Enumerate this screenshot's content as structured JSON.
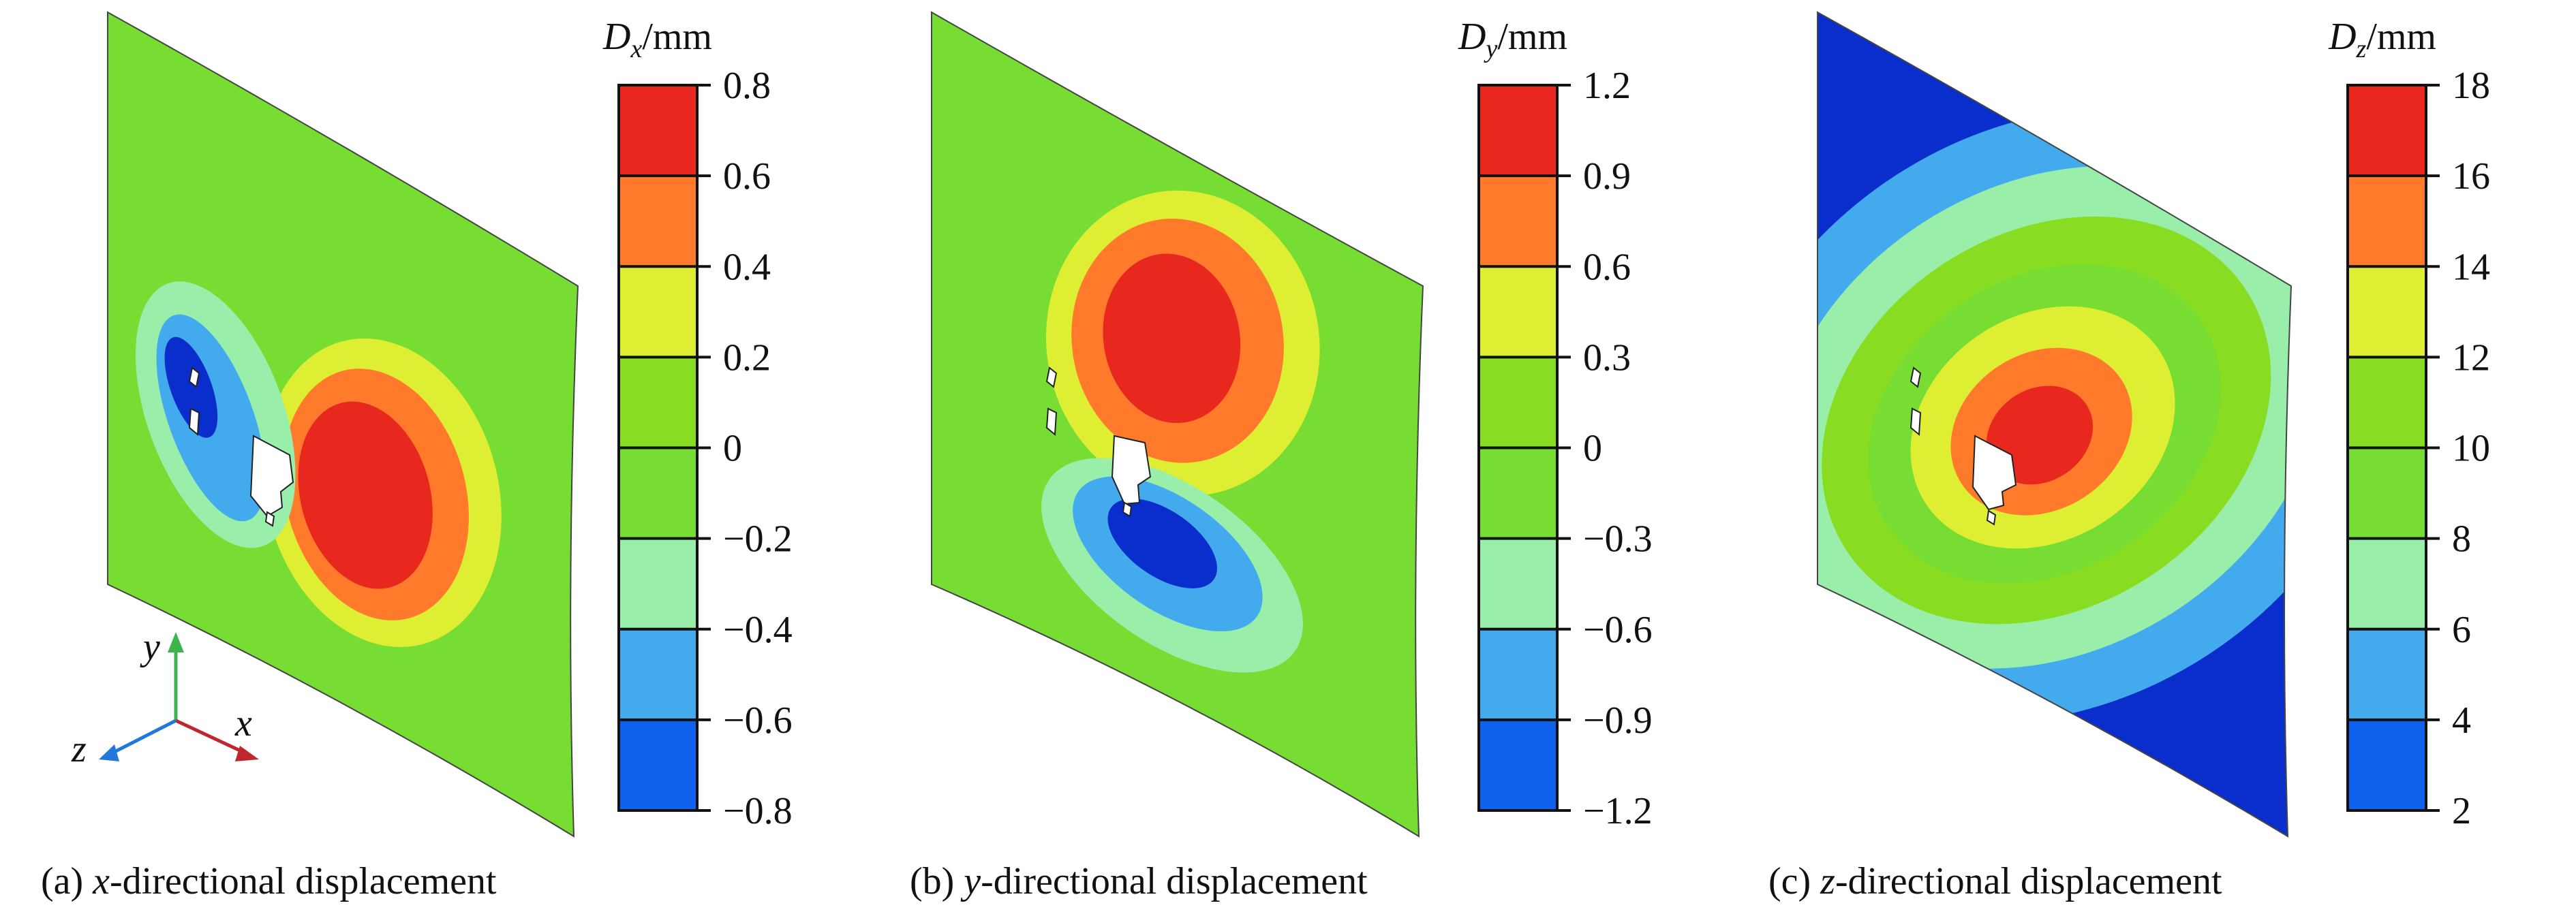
{
  "panels": [
    {
      "id": "a",
      "caption_prefix": "(a) ",
      "caption_var": "x",
      "caption_suffix": "-directional displacement",
      "legend_symbol": "D",
      "legend_subscript": "x",
      "legend_unit": "/mm",
      "legend_ticks": [
        "0.8",
        "0.6",
        "0.4",
        "0.2",
        "0",
        "−0.2",
        "−0.4",
        "−0.6",
        "−0.8"
      ],
      "legend_colors": [
        "#e8281e",
        "#ff7b2b",
        "#ddee33",
        "#88dd22",
        "#77dd33",
        "#99eeaa",
        "#44aaee",
        "#1060ee"
      ]
    },
    {
      "id": "b",
      "caption_prefix": "(b) ",
      "caption_var": "y",
      "caption_suffix": "-directional displacement",
      "legend_symbol": "D",
      "legend_subscript": "y",
      "legend_unit": "/mm",
      "legend_ticks": [
        "1.2",
        "0.9",
        "0.6",
        "0.3",
        "0",
        "−0.3",
        "−0.6",
        "−0.9",
        "−1.2"
      ],
      "legend_colors": [
        "#e8281e",
        "#ff7b2b",
        "#ddee33",
        "#88dd22",
        "#77dd33",
        "#99eeaa",
        "#44aaee",
        "#1060ee"
      ]
    },
    {
      "id": "c",
      "caption_prefix": "(c) ",
      "caption_var": "z",
      "caption_suffix": "-directional displacement",
      "legend_symbol": "D",
      "legend_subscript": "z",
      "legend_unit": "/mm",
      "legend_ticks": [
        "18",
        "16",
        "14",
        "12",
        "10",
        "8",
        "6",
        "4",
        "2"
      ],
      "legend_colors": [
        "#e8281e",
        "#ff7b2b",
        "#ddee33",
        "#88dd22",
        "#77dd33",
        "#99eeaa",
        "#44aaee",
        "#1060ee"
      ]
    }
  ],
  "axes_triad": {
    "x_label": "x",
    "y_label": "y",
    "z_label": "z",
    "x_color": "#c0262d",
    "y_color": "#3db54a",
    "z_color": "#2277dd"
  },
  "colors": {
    "red": "#e8281e",
    "orange": "#ff7b2b",
    "yellow": "#ddee33",
    "green": "#88dd22",
    "light_green": "#99eeaa",
    "light_blue": "#44aaee",
    "blue": "#1060ee",
    "dark_blue": "#0a2ecc"
  }
}
